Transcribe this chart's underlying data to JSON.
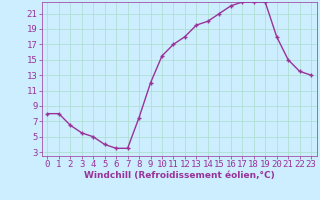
{
  "x": [
    0,
    1,
    2,
    3,
    4,
    5,
    6,
    7,
    8,
    9,
    10,
    11,
    12,
    13,
    14,
    15,
    16,
    17,
    18,
    19,
    20,
    21,
    22,
    23
  ],
  "y": [
    8,
    8,
    6.5,
    5.5,
    5,
    4,
    3.5,
    3.5,
    7.5,
    12,
    15.5,
    17,
    18,
    19.5,
    20,
    21,
    22,
    22.5,
    22.5,
    22.5,
    18,
    15,
    13.5,
    13
  ],
  "line_color": "#993399",
  "marker": "+",
  "background_color": "#cceeff",
  "grid_color": "#aaddcc",
  "xlabel": "Windchill (Refroidissement éolien,°C)",
  "yticks": [
    3,
    5,
    7,
    9,
    11,
    13,
    15,
    17,
    19,
    21
  ],
  "xticks": [
    0,
    1,
    2,
    3,
    4,
    5,
    6,
    7,
    8,
    9,
    10,
    11,
    12,
    13,
    14,
    15,
    16,
    17,
    18,
    19,
    20,
    21,
    22,
    23
  ],
  "tick_color": "#993399",
  "label_color": "#993399",
  "font_size": 6.5,
  "marker_size": 3,
  "line_width": 1.0,
  "xlim": [
    -0.5,
    23.5
  ],
  "ylim": [
    2.5,
    22.5
  ]
}
